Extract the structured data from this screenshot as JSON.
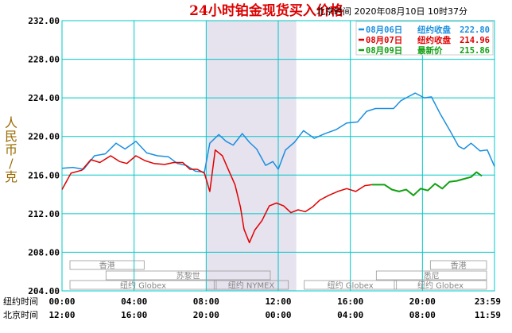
{
  "chart_data": {
    "type": "line",
    "title": "24小时铂金现货买入价格",
    "subtitle": "北京时间  2020年08月10日 10时37分",
    "ylabel": "人民币/克",
    "ylim": [
      204,
      232
    ],
    "yticks": [
      "232.00",
      "228.00",
      "224.00",
      "220.00",
      "216.00",
      "212.00",
      "208.00",
      "204.00"
    ],
    "x_rows": [
      {
        "label": "纽约时间",
        "ticks": [
          "00:00",
          "04:00",
          "08:00",
          "12:00",
          "16:00",
          "20:00",
          "23:59"
        ]
      },
      {
        "label": "北京时间",
        "ticks": [
          "12:00",
          "16:00",
          "20:00",
          "00:00",
          "04:00",
          "08:00",
          "11:59"
        ]
      }
    ],
    "highlight_range_hours": [
      8,
      13
    ],
    "sessions": [
      {
        "name": "香港",
        "rows": [
          [
            0,
            5
          ],
          [
            20,
            24
          ]
        ]
      },
      {
        "name": "苏黎世",
        "rows": [
          [
            2,
            12
          ]
        ]
      },
      {
        "name": "纽约 NYMEX",
        "rows": [
          [
            8,
            13
          ]
        ]
      },
      {
        "name": "纽约 Globex",
        "rows": [
          [
            0,
            9
          ],
          [
            13,
            19
          ],
          [
            18,
            24
          ]
        ]
      },
      {
        "name": "悉尼",
        "rows": [
          [
            17,
            24
          ]
        ]
      }
    ],
    "series": [
      {
        "name": "08月06日",
        "legend_label": "纽约收盘",
        "legend_value": "222.80",
        "color": "#1b8fe0",
        "points": [
          [
            0,
            216.7
          ],
          [
            0.6,
            216.8
          ],
          [
            1.2,
            216.6
          ],
          [
            1.8,
            218.0
          ],
          [
            2.4,
            218.2
          ],
          [
            3.0,
            219.3
          ],
          [
            3.5,
            218.7
          ],
          [
            4.1,
            219.5
          ],
          [
            4.7,
            218.3
          ],
          [
            5.3,
            218.0
          ],
          [
            5.9,
            217.9
          ],
          [
            6.4,
            217.2
          ],
          [
            6.9,
            217.0
          ],
          [
            7.4,
            216.4
          ],
          [
            7.9,
            216.3
          ],
          [
            8.2,
            219.3
          ],
          [
            8.7,
            220.2
          ],
          [
            9.1,
            219.5
          ],
          [
            9.5,
            219.1
          ],
          [
            10.0,
            220.3
          ],
          [
            10.4,
            219.4
          ],
          [
            10.8,
            218.7
          ],
          [
            11.3,
            217.0
          ],
          [
            11.7,
            217.4
          ],
          [
            12.0,
            216.6
          ],
          [
            12.4,
            218.6
          ],
          [
            12.9,
            219.4
          ],
          [
            13.4,
            220.6
          ],
          [
            14.0,
            219.8
          ],
          [
            14.6,
            220.3
          ],
          [
            15.2,
            220.7
          ],
          [
            15.8,
            221.4
          ],
          [
            16.4,
            221.5
          ],
          [
            16.9,
            222.6
          ],
          [
            17.4,
            222.9
          ],
          [
            17.9,
            222.9
          ],
          [
            18.4,
            222.9
          ],
          [
            18.8,
            223.7
          ],
          [
            19.2,
            224.1
          ],
          [
            19.6,
            224.5
          ],
          [
            20.1,
            224.0
          ],
          [
            20.5,
            224.1
          ],
          [
            21.0,
            222.3
          ],
          [
            21.5,
            220.7
          ],
          [
            22.0,
            219.0
          ],
          [
            22.3,
            218.7
          ],
          [
            22.7,
            219.3
          ],
          [
            23.2,
            218.5
          ],
          [
            23.6,
            218.6
          ],
          [
            24.0,
            216.9
          ]
        ]
      },
      {
        "name": "08月07日",
        "legend_label": "纽约收盘",
        "legend_value": "214.96",
        "color": "#e00000",
        "points": [
          [
            0,
            214.5
          ],
          [
            0.5,
            216.2
          ],
          [
            1.1,
            216.5
          ],
          [
            1.6,
            217.6
          ],
          [
            2.1,
            217.3
          ],
          [
            2.7,
            218.0
          ],
          [
            3.2,
            217.4
          ],
          [
            3.6,
            217.2
          ],
          [
            4.1,
            218.0
          ],
          [
            4.6,
            217.5
          ],
          [
            5.1,
            217.2
          ],
          [
            5.7,
            217.1
          ],
          [
            6.2,
            217.3
          ],
          [
            6.7,
            217.3
          ],
          [
            7.1,
            216.6
          ],
          [
            7.5,
            216.6
          ],
          [
            7.9,
            216.2
          ],
          [
            8.2,
            214.3
          ],
          [
            8.5,
            218.6
          ],
          [
            8.9,
            218.0
          ],
          [
            9.2,
            216.7
          ],
          [
            9.6,
            215.0
          ],
          [
            9.9,
            212.7
          ],
          [
            10.1,
            210.4
          ],
          [
            10.4,
            209.0
          ],
          [
            10.7,
            210.3
          ],
          [
            11.1,
            211.3
          ],
          [
            11.5,
            212.8
          ],
          [
            11.9,
            213.1
          ],
          [
            12.3,
            212.8
          ],
          [
            12.7,
            212.1
          ],
          [
            13.1,
            212.4
          ],
          [
            13.5,
            212.2
          ],
          [
            13.9,
            212.7
          ],
          [
            14.3,
            213.4
          ],
          [
            14.8,
            213.9
          ],
          [
            15.3,
            214.3
          ],
          [
            15.8,
            214.6
          ],
          [
            16.3,
            214.3
          ],
          [
            16.8,
            214.9
          ],
          [
            17.2,
            215.0
          ]
        ]
      },
      {
        "name": "08月09日",
        "legend_label": "最新价",
        "legend_value": "215.86",
        "color": "#10a010",
        "points": [
          [
            17.2,
            215.0
          ],
          [
            17.9,
            215.0
          ],
          [
            18.3,
            214.5
          ],
          [
            18.7,
            214.3
          ],
          [
            19.1,
            214.5
          ],
          [
            19.5,
            213.9
          ],
          [
            19.9,
            214.6
          ],
          [
            20.3,
            214.4
          ],
          [
            20.7,
            215.1
          ],
          [
            21.1,
            214.6
          ],
          [
            21.5,
            215.3
          ],
          [
            21.9,
            215.4
          ],
          [
            22.3,
            215.6
          ],
          [
            22.7,
            215.8
          ],
          [
            23.0,
            216.3
          ],
          [
            23.3,
            215.9
          ]
        ]
      }
    ],
    "colors": {
      "background": "#ffffff",
      "grid": "#00c8c8",
      "highlight": "#e6e2ee",
      "session_box": "#999999"
    }
  }
}
